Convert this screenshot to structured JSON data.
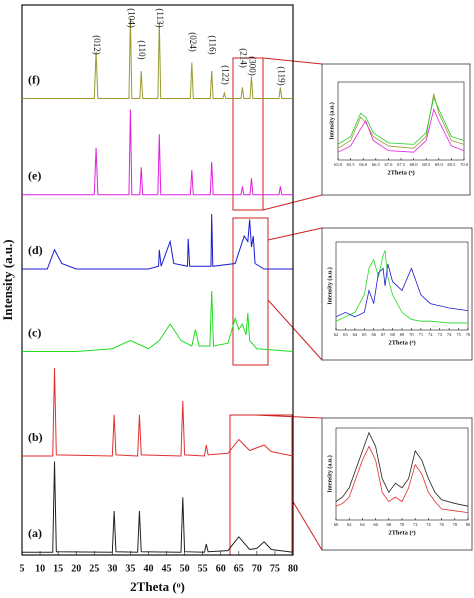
{
  "chart_data": [
    {
      "type": "line",
      "x_label": "2Theta (ᵒ)",
      "y_label": "Intensity (a.u.)",
      "xlim": [
        5,
        80
      ],
      "xticks": [
        5,
        10,
        15,
        20,
        25,
        30,
        35,
        40,
        45,
        50,
        55,
        60,
        65,
        70,
        75,
        80
      ],
      "ylim": [
        0,
        100
      ],
      "series": [
        {
          "name": "(a)",
          "color": "#222222",
          "x": [
            5,
            13.5,
            14,
            14.5,
            30,
            30.5,
            31,
            37,
            37.5,
            38,
            49,
            49.5,
            50,
            55.5,
            56,
            56.5,
            62,
            65,
            68,
            70,
            72,
            74,
            80
          ],
          "values": [
            0.5,
            0.5,
            17,
            0.6,
            0.5,
            8,
            0.6,
            0.5,
            8,
            0.6,
            0.5,
            10.5,
            0.6,
            0.5,
            2,
            0.6,
            0.8,
            3.3,
            1,
            1.2,
            2.4,
            1,
            0.5
          ]
        },
        {
          "name": "(b)",
          "color": "#e03030",
          "x": [
            5,
            13.5,
            14,
            14.5,
            30,
            30.5,
            31,
            37,
            37.5,
            38,
            49,
            49.5,
            50,
            55.5,
            56,
            56.5,
            62,
            65,
            68,
            70,
            72,
            74,
            80
          ],
          "values": [
            18,
            18,
            34,
            18.2,
            18,
            25.5,
            18.2,
            18,
            25.5,
            18.2,
            18,
            28,
            18.2,
            18,
            20,
            18.2,
            18.5,
            21,
            19,
            19.5,
            20,
            18.8,
            18
          ]
        },
        {
          "name": "(c)",
          "color": "#22dd22",
          "x": [
            5,
            20,
            30,
            35,
            40,
            43,
            46,
            49,
            52,
            53,
            54,
            57,
            57.5,
            58,
            62,
            64,
            65,
            66,
            67,
            67.5,
            68,
            70,
            80
          ],
          "values": [
            37,
            37,
            37.5,
            39,
            37.5,
            39,
            42,
            39,
            38,
            41,
            38,
            38,
            48,
            38,
            38.5,
            43,
            41,
            42,
            40,
            44,
            39,
            37.5,
            37
          ]
        },
        {
          "name": "(d)",
          "color": "#1c1ccc",
          "x": [
            5,
            12,
            14,
            16,
            20,
            40,
            42.8,
            43,
            43.5,
            46,
            47,
            50.8,
            51,
            51.4,
            57.3,
            57.5,
            57.8,
            64,
            66.5,
            67.5,
            68,
            68.5,
            69,
            69.5,
            72,
            80
          ],
          "values": [
            52,
            52,
            55.5,
            53,
            52,
            52,
            52.5,
            55.5,
            52.5,
            57,
            53,
            52.5,
            57.5,
            52.5,
            52.5,
            62,
            52.5,
            53,
            58,
            57,
            61,
            56,
            58,
            53,
            52,
            52
          ]
        },
        {
          "name": "(e)",
          "color": "#e020e0",
          "x": [
            5,
            25,
            25.5,
            26,
            34.6,
            35,
            35.4,
            37.6,
            38,
            38.4,
            42.6,
            43,
            43.4,
            51.6,
            52,
            52.4,
            57.1,
            57.5,
            57.9,
            65.6,
            66,
            66.4,
            68.1,
            68.5,
            68.9,
            76.1,
            76.5,
            76.9,
            80
          ],
          "values": [
            65.5,
            65.5,
            74,
            65.5,
            65.5,
            81,
            65.5,
            65.5,
            70.5,
            65.5,
            65.5,
            76.5,
            65.5,
            65.5,
            70,
            65.5,
            65.5,
            71.5,
            65.5,
            65.5,
            67,
            65.5,
            65.5,
            68.5,
            65.5,
            65.5,
            67,
            65.5,
            65.5
          ]
        },
        {
          "name": "(f)",
          "color": "#9a9a30",
          "x": [
            5,
            25,
            25.5,
            26,
            34.6,
            35,
            35.4,
            37.6,
            38,
            38.4,
            42.6,
            43,
            43.4,
            51.6,
            52,
            52.4,
            57.1,
            57.5,
            57.9,
            60.6,
            61,
            61.4,
            65.6,
            66,
            66.4,
            68.1,
            68.5,
            68.9,
            76.1,
            76.5,
            76.9,
            80
          ],
          "values": [
            83,
            83,
            91.5,
            83,
            83,
            97.6,
            83,
            83,
            88,
            83,
            83,
            97,
            83,
            83,
            89.5,
            83,
            83,
            88,
            83,
            83,
            84,
            83,
            83,
            85,
            83,
            83,
            87,
            83,
            83,
            85,
            83,
            83
          ]
        }
      ],
      "peak_labels": [
        {
          "text": "(012)",
          "x": 25.5
        },
        {
          "text": "(104)",
          "x": 35
        },
        {
          "text": "(110)",
          "x": 38
        },
        {
          "text": "(113)",
          "x": 43
        },
        {
          "text": "(024)",
          "x": 52
        },
        {
          "text": "(116)",
          "x": 57.5
        },
        {
          "text": "(122)",
          "x": 61
        },
        {
          "text": "(214)",
          "x": 66
        },
        {
          "text": "(300)",
          "x": 68.5
        },
        {
          "text": "(119)",
          "x": 76.5
        }
      ]
    },
    {
      "type": "line",
      "x_label": "2Theta (ᵒ)",
      "y_label": "Intensity (a.u.)",
      "xlim": [
        65,
        70
      ],
      "xticks": [
        {
          "value": 65,
          "label": "65.0"
        },
        65.5,
        {
          "value": 66,
          "label": "66.0"
        },
        66.5,
        {
          "value": 67,
          "label": "67.0"
        },
        67.5,
        {
          "value": 68,
          "label": "68.0"
        },
        68.5,
        {
          "value": 69,
          "label": "69.0"
        },
        69.5,
        {
          "value": 70,
          "label": "70.0"
        }
      ],
      "ylim": [
        0,
        100
      ],
      "series": [
        {
          "color": "#9a9a30",
          "x": [
            65,
            65.5,
            65.9,
            66.1,
            66.4,
            67,
            68,
            68.5,
            68.8,
            69,
            69.5,
            70
          ],
          "values": [
            15,
            25,
            55,
            48,
            30,
            18,
            15,
            30,
            85,
            60,
            25,
            20
          ]
        },
        {
          "color": "#e020e0",
          "x": [
            65,
            65.5,
            65.9,
            66.1,
            66.4,
            67,
            68,
            68.5,
            68.8,
            69,
            69.5,
            70
          ],
          "values": [
            10,
            18,
            40,
            50,
            25,
            12,
            10,
            25,
            65,
            50,
            18,
            12
          ]
        },
        {
          "color": "#22cc22",
          "x": [
            65,
            65.5,
            65.9,
            66.1,
            66.4,
            67,
            68,
            68.5,
            68.8,
            69,
            69.5,
            70
          ],
          "values": [
            20,
            30,
            60,
            55,
            35,
            22,
            20,
            35,
            80,
            65,
            30,
            25
          ]
        }
      ]
    },
    {
      "type": "line",
      "x_label": "2Theta (ᵒ)",
      "y_label": "Intensity (a.u.)",
      "xlim": [
        62,
        76
      ],
      "xticks": [
        62,
        63,
        64,
        65,
        66,
        67,
        68,
        69,
        70,
        71,
        72,
        73,
        74,
        75,
        76
      ],
      "ylim": [
        0,
        100
      ],
      "series": [
        {
          "color": "#22dd22",
          "x": [
            62,
            63,
            64,
            65,
            65.5,
            66,
            66.5,
            67,
            67.2,
            67.5,
            68,
            69,
            70,
            71,
            72,
            74,
            76
          ],
          "values": [
            10,
            15,
            20,
            40,
            70,
            80,
            60,
            85,
            90,
            60,
            40,
            20,
            12,
            10,
            10,
            8,
            8
          ]
        },
        {
          "color": "#1c1ccc",
          "x": [
            62,
            63,
            64,
            65,
            65.5,
            66,
            66.5,
            67,
            67.2,
            67.5,
            68,
            69,
            70,
            71,
            72,
            74,
            76
          ],
          "values": [
            15,
            20,
            15,
            20,
            45,
            30,
            65,
            70,
            50,
            75,
            55,
            45,
            70,
            40,
            30,
            25,
            22
          ]
        }
      ]
    },
    {
      "type": "line",
      "x_label": "2Theta (ᵒ)",
      "y_label": "Intensity (a.u.)",
      "xlim": [
        60,
        80
      ],
      "xticks": [
        60,
        62,
        64,
        66,
        68,
        70,
        72,
        74,
        76,
        78,
        80
      ],
      "ylim": [
        0,
        100
      ],
      "series": [
        {
          "color": "#222222",
          "x": [
            60,
            61,
            62,
            63,
            64,
            65,
            66,
            67,
            68,
            69,
            70,
            71,
            72,
            73,
            74,
            75,
            76,
            78,
            80
          ],
          "values": [
            20,
            25,
            35,
            55,
            75,
            95,
            80,
            45,
            30,
            40,
            35,
            45,
            75,
            65,
            45,
            30,
            22,
            18,
            15
          ]
        },
        {
          "color": "#e03030",
          "x": [
            60,
            61,
            62,
            63,
            64,
            65,
            66,
            67,
            68,
            69,
            70,
            71,
            72,
            73,
            74,
            75,
            76,
            78,
            80
          ],
          "values": [
            15,
            18,
            25,
            45,
            65,
            80,
            65,
            30,
            20,
            25,
            20,
            35,
            60,
            50,
            30,
            20,
            12,
            10,
            8
          ]
        }
      ]
    }
  ]
}
